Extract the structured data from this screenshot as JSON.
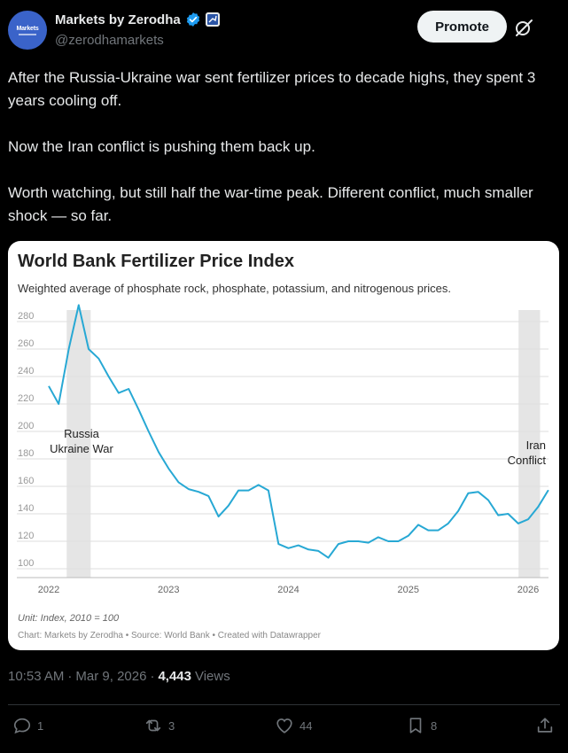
{
  "author": {
    "display_name": "Markets by Zerodha",
    "handle": "@zerodhamarkets",
    "avatar_text": "Markets"
  },
  "header": {
    "promote_label": "Promote"
  },
  "tweet": {
    "paragraphs": [
      "After the Russia-Ukraine war sent fertilizer prices to decade highs, they spent 3 years cooling off.",
      "Now the Iran conflict is pushing them back up.",
      "Worth watching, but still half the war-time peak. Different conflict, much smaller shock — so far."
    ]
  },
  "chart_data": {
    "type": "line",
    "title": "World Bank Fertilizer Price Index",
    "subtitle": "Weighted average of phosphate rock, phosphate, potassium, and nitrogenous prices.",
    "unit_note": "Unit: Index, 2010 = 100",
    "source_note": "Chart: Markets by Zerodha • Source: World Bank • Created with Datawrapper",
    "x_ticks": [
      "2022",
      "2023",
      "2024",
      "2025",
      "2026"
    ],
    "y_ticks": [
      100,
      120,
      140,
      160,
      180,
      200,
      220,
      240,
      260,
      280
    ],
    "xlim": [
      2022,
      2026
    ],
    "ylim": [
      100,
      280
    ],
    "series": [
      {
        "name": "Fertilizer Price Index",
        "x": [
          2022.0,
          2022.083,
          2022.167,
          2022.25,
          2022.333,
          2022.417,
          2022.5,
          2022.583,
          2022.667,
          2022.75,
          2022.833,
          2022.917,
          2023.0,
          2023.083,
          2023.167,
          2023.25,
          2023.333,
          2023.417,
          2023.5,
          2023.583,
          2023.667,
          2023.75,
          2023.833,
          2023.917,
          2024.0,
          2024.083,
          2024.167,
          2024.25,
          2024.333,
          2024.417,
          2024.5,
          2024.583,
          2024.667,
          2024.75,
          2024.833,
          2024.917,
          2025.0,
          2025.083,
          2025.167,
          2025.25,
          2025.333,
          2025.417,
          2025.5,
          2025.583,
          2025.667,
          2025.75,
          2025.833,
          2025.917,
          2026.0,
          2026.083,
          2026.167
        ],
        "values": [
          233,
          220,
          260,
          292,
          260,
          253,
          240,
          228,
          231,
          216,
          200,
          185,
          173,
          163,
          158,
          156,
          153,
          138,
          146,
          157,
          157,
          161,
          157,
          118,
          115,
          117,
          114,
          113,
          108,
          118,
          120,
          120,
          119,
          123,
          120,
          120,
          124,
          132,
          128,
          128,
          133,
          142,
          155,
          156,
          150,
          139,
          140,
          133,
          136,
          145,
          157
        ]
      }
    ],
    "annotations": [
      {
        "label": "Russia\nUkraine War",
        "x_start": 2022.15,
        "x_end": 2022.35
      },
      {
        "label": "Iran\nConflict",
        "x_start": 2025.92,
        "x_end": 2026.1
      }
    ]
  },
  "meta": {
    "time": "10:53 AM",
    "date": "Mar 9, 2026",
    "views_count": "4,443",
    "views_label": "Views"
  },
  "actions": {
    "replies": "1",
    "reposts": "3",
    "likes": "44",
    "bookmarks": "8"
  },
  "colors": {
    "line": "#27a8d4",
    "band": "#e5e5e5",
    "grid": "#dedede",
    "verified": "#1d9bf0"
  }
}
